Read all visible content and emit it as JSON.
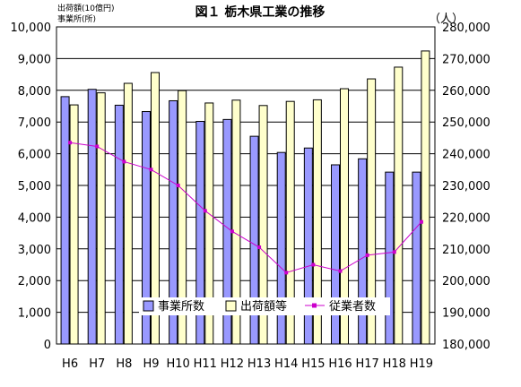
{
  "chart_data": {
    "type": "bar",
    "title": "図１ 栃木県工業の推移",
    "left_axis_label_lines": [
      "出荷額(10億円)",
      "事業所(所)"
    ],
    "right_axis_label": "（人）",
    "categories": [
      "H6",
      "H7",
      "H8",
      "H9",
      "H10",
      "H11",
      "H12",
      "H13",
      "H14",
      "H15",
      "H16",
      "H17",
      "H18",
      "H19"
    ],
    "left_ylim": [
      0,
      10000
    ],
    "left_ticks": [
      "0",
      "1,000",
      "2,000",
      "3,000",
      "4,000",
      "5,000",
      "6,000",
      "7,000",
      "8,000",
      "9,000",
      "10,000"
    ],
    "right_ylim": [
      180000,
      280000
    ],
    "right_ticks": [
      "180,000",
      "190,000",
      "200,000",
      "210,000",
      "220,000",
      "230,000",
      "240,000",
      "250,000",
      "260,000",
      "270,000",
      "280,000"
    ],
    "grid": true,
    "legend_position": "bottom-center",
    "series": [
      {
        "name": "事業所数",
        "type": "bar",
        "axis": "left",
        "values": [
          7800,
          8030,
          7530,
          7330,
          7670,
          7020,
          7080,
          6550,
          6040,
          6180,
          5650,
          5840,
          5420,
          5420
        ]
      },
      {
        "name": "出荷額等",
        "type": "bar",
        "axis": "left",
        "values": [
          7540,
          7920,
          8220,
          8560,
          7990,
          7600,
          7690,
          7520,
          7650,
          7700,
          8050,
          8360,
          8730,
          9240
        ]
      },
      {
        "name": "従業者数",
        "type": "line",
        "axis": "right",
        "values": [
          243500,
          242300,
          237500,
          235000,
          230000,
          222000,
          215500,
          210500,
          202500,
          205000,
          203000,
          208000,
          209000,
          218500
        ]
      }
    ],
    "colors": {
      "bar1": "#9999ff",
      "bar2": "#ffffcc",
      "line": "#cc00cc",
      "stroke": "#000000"
    }
  }
}
